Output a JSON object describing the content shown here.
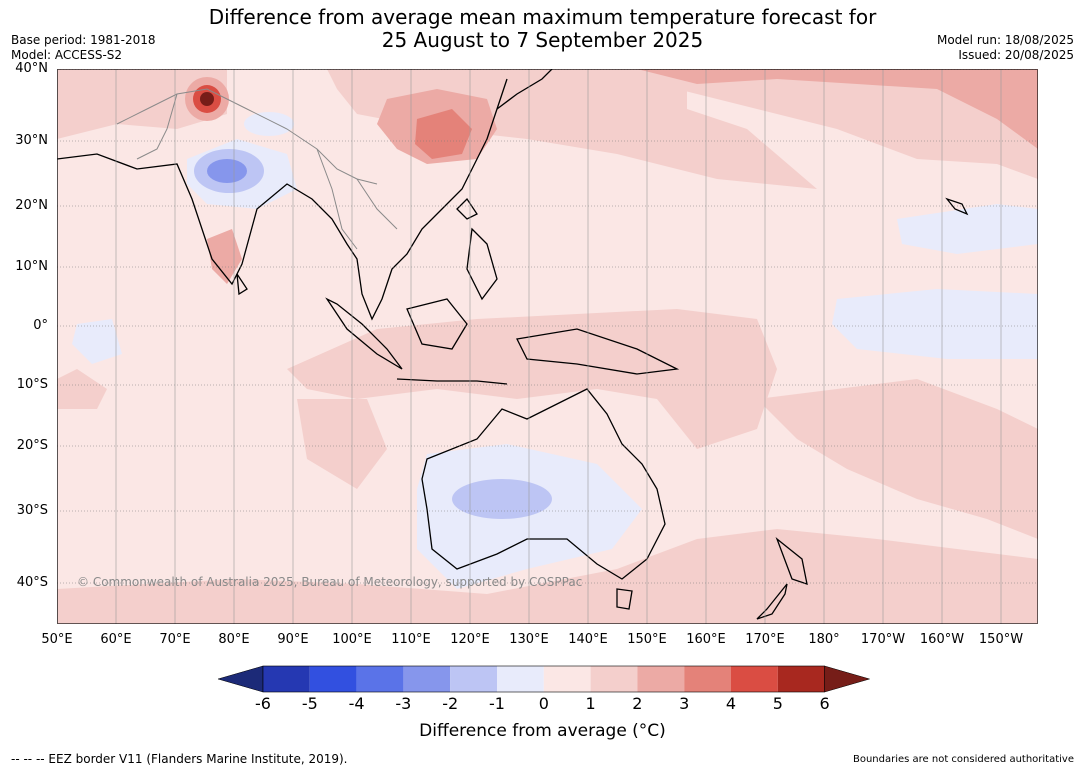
{
  "header": {
    "title_line1": "Difference from average mean maximum temperature forecast for",
    "title_line2": "25 August to 7 September 2025",
    "base_period": "Base period: 1981-2018",
    "model": "Model: ACCESS-S2",
    "model_run": "Model run: 18/08/2025",
    "issued": "Issued: 20/08/2025"
  },
  "map": {
    "copyright": "© Commonwealth of Australia 2025, Bureau of Meteorology, supported by COSPPac",
    "lat_labels": [
      "40°N",
      "30°N",
      "20°N",
      "10°N",
      "0°",
      "10°S",
      "20°S",
      "30°S",
      "40°S"
    ],
    "lon_labels": [
      "50°E",
      "60°E",
      "70°E",
      "80°E",
      "90°E",
      "100°E",
      "110°E",
      "120°E",
      "130°E",
      "140°E",
      "150°E",
      "160°E",
      "170°E",
      "180°",
      "170°W",
      "160°W",
      "150°W"
    ],
    "background_color": "#fbe7e5"
  },
  "colorbar": {
    "ticks": [
      "-6",
      "-5",
      "-4",
      "-3",
      "-2",
      "-1",
      "0",
      "1",
      "2",
      "3",
      "4",
      "5",
      "6"
    ],
    "colors": [
      "#1c2a78",
      "#2538b2",
      "#3250e0",
      "#5a73e8",
      "#8696ec",
      "#bdc5f4",
      "#e8ebfb",
      "#fbe7e5",
      "#f4cfcc",
      "#ecaaa5",
      "#e48279",
      "#da4d43",
      "#a8281f",
      "#761d18"
    ],
    "label": "Difference from average (°C)"
  },
  "footer": {
    "eez_note": "-- -- -- EEZ border V11 (Flanders Marine Institute, 2019).",
    "boundaries_note": "Boundaries are not considered authoritative"
  }
}
